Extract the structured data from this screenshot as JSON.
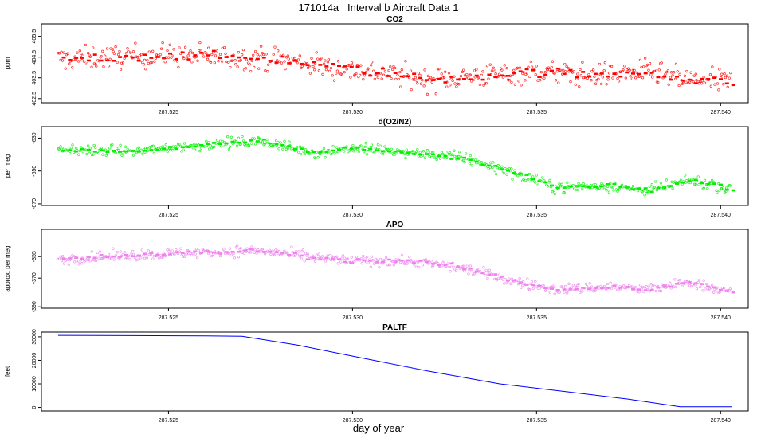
{
  "title": "171014a   Interval b Aircraft Data 1",
  "xlabel": "day of year",
  "xlim": [
    287.5217,
    287.5406
  ],
  "xticks": [
    "287.525",
    "287.530",
    "287.535",
    "287.540"
  ],
  "xtick_values": [
    287.525,
    287.53,
    287.535,
    287.54
  ],
  "chart_data": [
    {
      "type": "scatter",
      "title": "CO2",
      "ylabel": "ppm",
      "ylim": [
        402.3,
        406.1
      ],
      "yticks": [
        "402.5",
        "403.5",
        "404.5",
        "405.5"
      ],
      "ytick_values": [
        402.5,
        403.5,
        404.5,
        405.5
      ],
      "color": "#ff0000",
      "trend": [
        [
          287.522,
          404.4
        ],
        [
          287.525,
          404.6
        ],
        [
          287.528,
          404.4
        ],
        [
          287.5295,
          404.0
        ],
        [
          287.531,
          403.7
        ],
        [
          287.532,
          403.4
        ],
        [
          287.5335,
          403.6
        ],
        [
          287.535,
          403.8
        ],
        [
          287.5365,
          403.6
        ],
        [
          287.538,
          403.8
        ],
        [
          287.539,
          403.4
        ],
        [
          287.5403,
          403.3
        ]
      ],
      "noise": 0.55
    },
    {
      "type": "scatter",
      "title": "d(O2/N2)",
      "ylabel": "per meg",
      "ylim": [
        -671,
        -623
      ],
      "yticks": [
        "-670",
        "-650",
        "-630"
      ],
      "ytick_values": [
        -670,
        -650,
        -630
      ],
      "color": "#00ee00",
      "trend": [
        [
          287.522,
          -637
        ],
        [
          287.524,
          -638
        ],
        [
          287.526,
          -634
        ],
        [
          287.5275,
          -632
        ],
        [
          287.529,
          -639
        ],
        [
          287.53,
          -636
        ],
        [
          287.5315,
          -639
        ],
        [
          287.533,
          -642
        ],
        [
          287.5345,
          -652
        ],
        [
          287.5355,
          -660
        ],
        [
          287.537,
          -659
        ],
        [
          287.538,
          -662
        ],
        [
          287.5392,
          -656
        ],
        [
          287.5403,
          -661
        ]
      ],
      "noise": 3.2
    },
    {
      "type": "scatter",
      "title": "APO",
      "ylabel": "approx. per meg",
      "ylim": [
        -391,
        -336
      ],
      "yticks": [
        "-390",
        "-370",
        "-355"
      ],
      "ytick_values": [
        -390,
        -370,
        -355
      ],
      "color": "#ee82ee",
      "trend": [
        [
          287.522,
          -357
        ],
        [
          287.524,
          -354
        ],
        [
          287.526,
          -352
        ],
        [
          287.5275,
          -351
        ],
        [
          287.529,
          -356
        ],
        [
          287.53,
          -358
        ],
        [
          287.5315,
          -358
        ],
        [
          287.533,
          -363
        ],
        [
          287.5345,
          -373
        ],
        [
          287.5355,
          -378
        ],
        [
          287.537,
          -376
        ],
        [
          287.538,
          -378
        ],
        [
          287.5392,
          -373
        ],
        [
          287.5403,
          -380
        ]
      ],
      "noise": 3.6
    },
    {
      "type": "line",
      "title": "PALTF",
      "ylabel": "feet",
      "ylim": [
        -1500,
        32000
      ],
      "yticks": [
        "0",
        "10000",
        "20000",
        "30000"
      ],
      "ytick_values": [
        0,
        10000,
        20000,
        30000
      ],
      "color": "#0000ff",
      "x": [
        287.522,
        287.524,
        287.526,
        287.527,
        287.5285,
        287.53,
        287.532,
        287.534,
        287.536,
        287.5375,
        287.5389,
        287.5403
      ],
      "y": [
        30600,
        30500,
        30400,
        30200,
        26500,
        21800,
        15600,
        10000,
        6300,
        3500,
        300,
        300
      ]
    }
  ]
}
